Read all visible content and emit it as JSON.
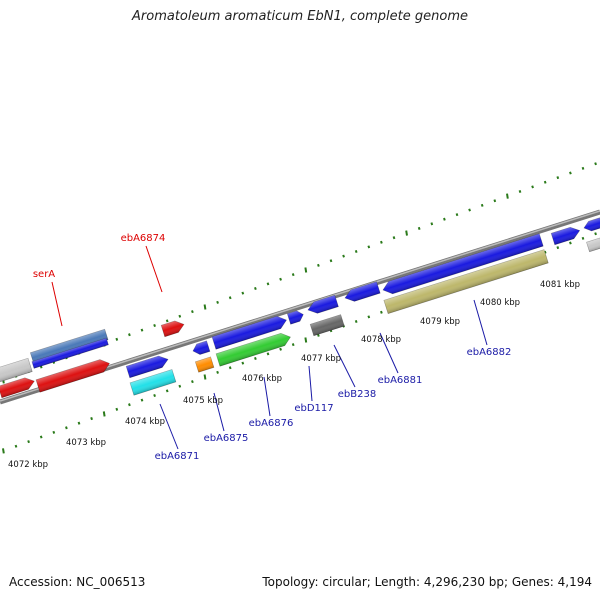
{
  "title": "Aromatoleum aromaticum EbN1, complete genome",
  "footer": {
    "accession": "Accession: NC_006513",
    "summary": "Topology: circular; Length: 4,296,230 bp; Genes: 4,194"
  },
  "colors": {
    "label_top": "#dd0000",
    "label_bottom": "#1a1aa6",
    "tick": "#2a7a1a",
    "backbone": "#888888"
  },
  "scale": {
    "unit": "kbp",
    "labels": [
      "4072 kbp",
      "4073 kbp",
      "4074 kbp",
      "4075 kbp",
      "4076 kbp",
      "4077 kbp",
      "4078 kbp",
      "4079 kbp",
      "4080 kbp",
      "4081 kbp"
    ]
  },
  "genes": [
    {
      "strand": "bottom",
      "color": "#c8c8c8"
    },
    {
      "strand": "bottom",
      "color": "#dd1111"
    },
    {
      "strand": "top",
      "color": "#4a79b8"
    },
    {
      "strand": "bottom",
      "color": "#1a1ae0"
    },
    {
      "strand": "bottom",
      "color": "#dd1111"
    },
    {
      "strand": "top",
      "color": "#dd1111"
    },
    {
      "strand": "bottom",
      "color": "#1a1ae0"
    },
    {
      "strand": "bottom",
      "color": "#22e0e8"
    },
    {
      "strand": "bottom",
      "color": "#1a1ae0"
    },
    {
      "strand": "bottom",
      "color": "#ff8c00"
    },
    {
      "strand": "bottom",
      "color": "#1a1ae0"
    },
    {
      "strand": "bottom",
      "color": "#33cc33"
    },
    {
      "strand": "bottom",
      "color": "#1a1ae0"
    },
    {
      "strand": "bottom",
      "color": "#1a1ae0"
    },
    {
      "strand": "bottom",
      "color": "#666666"
    },
    {
      "strand": "bottom",
      "color": "#1a1ae0"
    },
    {
      "strand": "bottom",
      "color": "#1a1ae0"
    },
    {
      "strand": "bottom",
      "color": "#bdb76b"
    },
    {
      "strand": "bottom",
      "color": "#1a1ae0"
    },
    {
      "strand": "bottom",
      "color": "#c8c8c8"
    },
    {
      "strand": "bottom",
      "color": "#1a1ae0"
    }
  ],
  "labels": [
    {
      "name": "serA",
      "side": "top"
    },
    {
      "name": "ebA6874",
      "side": "top"
    },
    {
      "name": "ebA6871",
      "side": "bottom"
    },
    {
      "name": "ebA6875",
      "side": "bottom"
    },
    {
      "name": "ebA6876",
      "side": "bottom"
    },
    {
      "name": "ebD117",
      "side": "bottom"
    },
    {
      "name": "ebB238",
      "side": "bottom"
    },
    {
      "name": "ebA6881",
      "side": "bottom"
    },
    {
      "name": "ebA6882",
      "side": "bottom"
    }
  ]
}
